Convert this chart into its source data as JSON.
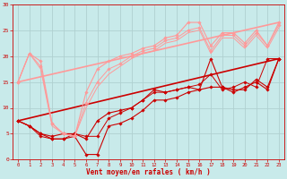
{
  "background_color": "#c8eaea",
  "grid_color": "#b0d0d0",
  "xlabel": "Vent moyen/en rafales ( km/h )",
  "xlabel_color": "#cc0000",
  "tick_color": "#cc0000",
  "xlim": [
    -0.5,
    23.5
  ],
  "ylim": [
    0,
    30
  ],
  "yticks": [
    0,
    5,
    10,
    15,
    20,
    25,
    30
  ],
  "xticks": [
    0,
    1,
    2,
    3,
    4,
    5,
    6,
    7,
    8,
    9,
    10,
    11,
    12,
    13,
    14,
    15,
    16,
    17,
    18,
    19,
    20,
    21,
    22,
    23
  ],
  "series": [
    {
      "x": [
        0,
        1,
        2,
        3,
        4,
        5,
        6,
        7,
        8,
        9,
        10,
        11,
        12,
        13,
        14,
        15,
        16,
        17,
        18,
        19,
        20,
        21,
        22,
        23
      ],
      "y": [
        7.5,
        6.5,
        5.0,
        4.5,
        5.0,
        5.0,
        4.0,
        7.5,
        9.0,
        9.5,
        10.0,
        11.5,
        13.5,
        13.0,
        13.5,
        14.0,
        13.5,
        19.5,
        14.0,
        13.5,
        13.5,
        15.5,
        14.0,
        19.5
      ],
      "color": "#cc0000",
      "lw": 0.8,
      "marker": "D",
      "markersize": 1.8
    },
    {
      "x": [
        0,
        1,
        2,
        3,
        4,
        5,
        6,
        7,
        8,
        9,
        10,
        11,
        12,
        13,
        14,
        15,
        16,
        17,
        18,
        19,
        20,
        21,
        22,
        23
      ],
      "y": [
        7.5,
        6.5,
        5.0,
        4.0,
        4.0,
        4.5,
        1.0,
        1.0,
        6.5,
        7.0,
        8.0,
        9.5,
        11.5,
        11.5,
        12.0,
        13.0,
        13.5,
        14.0,
        14.0,
        13.0,
        14.0,
        15.0,
        13.5,
        19.5
      ],
      "color": "#cc0000",
      "lw": 0.8,
      "marker": "D",
      "markersize": 1.8
    },
    {
      "x": [
        0,
        1,
        2,
        3,
        4,
        5,
        6,
        7,
        8,
        9,
        10,
        11,
        12,
        13,
        14,
        15,
        16,
        17,
        18,
        19,
        20,
        21,
        22,
        23
      ],
      "y": [
        7.5,
        6.5,
        4.5,
        4.0,
        4.0,
        5.0,
        4.5,
        4.5,
        8.0,
        9.0,
        10.0,
        11.5,
        13.0,
        13.0,
        13.5,
        14.0,
        14.5,
        16.5,
        13.5,
        14.0,
        15.0,
        14.0,
        19.5,
        19.5
      ],
      "color": "#cc0000",
      "lw": 0.7,
      "marker": "D",
      "markersize": 1.8
    },
    {
      "x": [
        0,
        23
      ],
      "y": [
        7.5,
        19.5
      ],
      "color": "#cc0000",
      "lw": 1.2,
      "marker": null,
      "markersize": 0
    },
    {
      "x": [
        0,
        1,
        2,
        3,
        4,
        5,
        6,
        7,
        8,
        9,
        10,
        11,
        12,
        13,
        14,
        15,
        16,
        17,
        18,
        19,
        20,
        21,
        22,
        23
      ],
      "y": [
        15.0,
        20.5,
        19.0,
        7.0,
        5.0,
        4.5,
        13.0,
        17.5,
        19.0,
        20.0,
        20.5,
        21.5,
        22.0,
        23.5,
        24.0,
        26.5,
        26.5,
        22.0,
        24.5,
        24.5,
        22.5,
        25.0,
        22.0,
        26.5
      ],
      "color": "#ff9999",
      "lw": 0.8,
      "marker": "D",
      "markersize": 1.8
    },
    {
      "x": [
        0,
        23
      ],
      "y": [
        15.0,
        26.5
      ],
      "color": "#ff9999",
      "lw": 1.2,
      "marker": null,
      "markersize": 0
    },
    {
      "x": [
        0,
        1,
        2,
        3,
        4,
        5,
        6,
        7,
        8,
        9,
        10,
        11,
        12,
        13,
        14,
        15,
        16,
        17,
        18,
        19,
        20,
        21,
        22,
        23
      ],
      "y": [
        15.0,
        20.5,
        18.0,
        7.0,
        5.0,
        4.5,
        11.0,
        15.0,
        17.5,
        18.5,
        20.0,
        21.0,
        21.5,
        23.0,
        23.5,
        25.0,
        25.5,
        21.0,
        24.0,
        24.0,
        22.0,
        24.5,
        22.0,
        26.0
      ],
      "color": "#ff9999",
      "lw": 0.7,
      "marker": "D",
      "markersize": 1.8
    },
    {
      "x": [
        0,
        1,
        2,
        3,
        4,
        5,
        6,
        7,
        8,
        9,
        10,
        11,
        12,
        13,
        14,
        15,
        16,
        17,
        18,
        19,
        20,
        21,
        22,
        23
      ],
      "y": [
        15.0,
        20.5,
        17.5,
        6.5,
        5.0,
        4.5,
        10.0,
        14.0,
        16.5,
        18.0,
        19.5,
        20.5,
        21.0,
        22.5,
        23.0,
        24.5,
        25.0,
        20.5,
        23.5,
        23.5,
        21.5,
        24.0,
        21.5,
        25.5
      ],
      "color": "#ff9999",
      "lw": 0.7,
      "marker": null,
      "markersize": 0
    }
  ]
}
